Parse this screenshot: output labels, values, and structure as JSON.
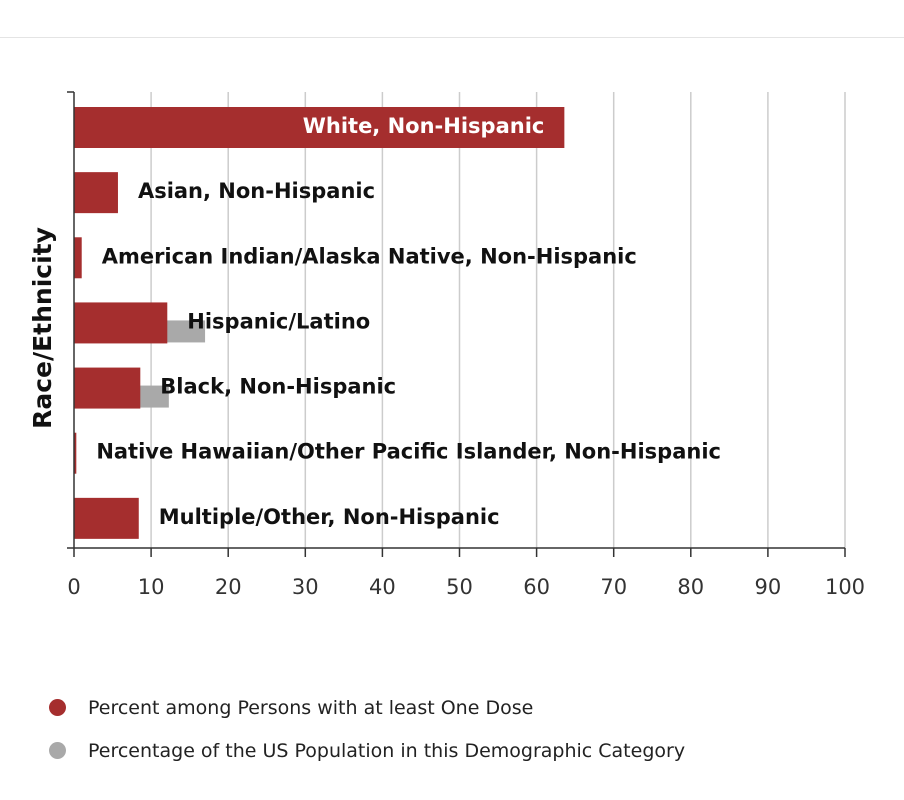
{
  "colors": {
    "series1": "#a52e2e",
    "series2": "#a9a9a9",
    "grid": "#cccccc",
    "axis": "#333333"
  },
  "legend": {
    "items": [
      {
        "label": "Percent among Persons with at least One Dose",
        "color": "#a52e2e"
      },
      {
        "label": "Percentage of the US Population in this Demographic Category",
        "color": "#a9a9a9"
      }
    ]
  },
  "chart_data": {
    "type": "bar",
    "orientation": "horizontal",
    "ylabel": "Race/Ethnicity",
    "xlabel": "",
    "xlim": [
      0,
      100
    ],
    "xticks": [
      0,
      10,
      20,
      30,
      40,
      50,
      60,
      70,
      80,
      90,
      100
    ],
    "grid": true,
    "legend_position": "bottom",
    "categories": [
      "White, Non-Hispanic",
      "Asian, Non-Hispanic",
      "American Indian/Alaska Native, Non-Hispanic",
      "Hispanic/Latino",
      "Black, Non-Hispanic",
      "Native Hawaiian/Other Pacific Islander, Non-Hispanic",
      "Multiple/Other, Non-Hispanic"
    ],
    "series": [
      {
        "name": "Percent among Persons with at least One Dose",
        "values": [
          63.6,
          5.7,
          1.0,
          12.1,
          8.6,
          0.3,
          8.4
        ]
      },
      {
        "name": "Percentage of the US Population in this Demographic Category",
        "values": [
          61.0,
          5.7,
          0.7,
          17.0,
          12.3,
          0.2,
          2.3
        ]
      }
    ]
  }
}
